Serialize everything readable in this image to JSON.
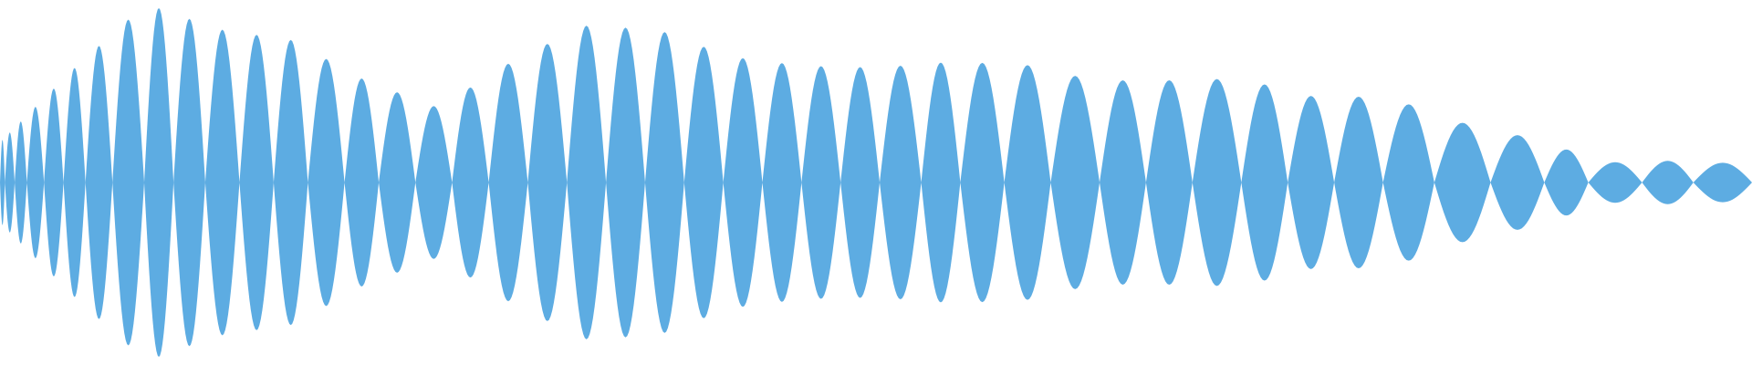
{
  "waveform": {
    "color": "#5DACE2",
    "amplitude_envelope": [
      0.22,
      0.62,
      0.98,
      0.84,
      0.78,
      0.56,
      0.41,
      0.66,
      0.86,
      0.84,
      0.69,
      0.64,
      0.63,
      0.66,
      0.65,
      0.56,
      0.56,
      0.57,
      0.47,
      0.47,
      0.33,
      0.24,
      0.11,
      0.12,
      0.1
    ],
    "lobe_lengths": [
      10,
      20,
      25,
      35,
      40,
      45,
      55,
      65,
      60,
      65,
      70,
      70,
      70,
      75,
      70,
      75,
      75,
      75,
      80,
      80,
      80,
      80,
      80,
      80,
      80,
      80,
      80,
      80,
      85,
      80,
      90,
      95,
      100,
      95,
      95,
      100,
      95,
      95,
      100,
      105,
      115,
      110,
      90,
      110,
      105,
      120
    ]
  }
}
